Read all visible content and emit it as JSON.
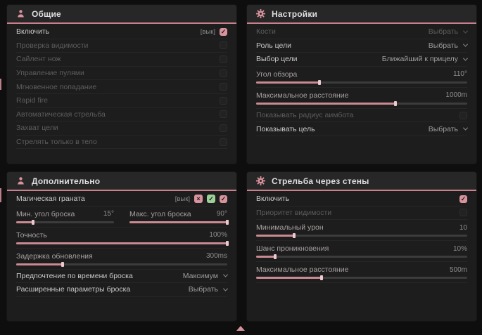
{
  "accent": "#d9939d",
  "colors": {
    "panel_bg": "#1d1d1d",
    "header_bg": "#272727",
    "accent": "#d9939d",
    "slider_fill": "#ca8a93",
    "page_bg": "#0e0e0e"
  },
  "panels": [
    {
      "id": "general",
      "title": "Общие",
      "icon": "person-icon",
      "rows": [
        {
          "type": "checkbox",
          "label": "Включить",
          "tag": "[вык]",
          "checked": true,
          "enabled": true
        },
        {
          "type": "checkbox",
          "label": "Проверка видимости",
          "checked": false,
          "enabled": false
        },
        {
          "type": "checkbox",
          "label": "Сайлент нож",
          "checked": false,
          "enabled": false
        },
        {
          "type": "checkbox",
          "label": "Управление пулями",
          "checked": false,
          "enabled": false
        },
        {
          "type": "checkbox",
          "label": "Мгновенное попадание",
          "checked": false,
          "enabled": false
        },
        {
          "type": "checkbox",
          "label": "Rapid fire",
          "checked": false,
          "enabled": false
        },
        {
          "type": "checkbox",
          "label": "Автоматическая стрельба",
          "checked": false,
          "enabled": false
        },
        {
          "type": "checkbox",
          "label": "Захват цели",
          "checked": false,
          "enabled": false
        },
        {
          "type": "checkbox",
          "label": "Стрелять только в тело",
          "checked": false,
          "enabled": false
        }
      ]
    },
    {
      "id": "settings",
      "title": "Настройки",
      "icon": "gear-icon",
      "rows": [
        {
          "type": "dropdown",
          "label": "Кости",
          "value": "Выбрать",
          "enabled": false
        },
        {
          "type": "dropdown",
          "label": "Роль цели",
          "value": "Выбрать",
          "enabled": true
        },
        {
          "type": "dropdown",
          "label": "Выбор цели",
          "value": "Ближайший к прицелу",
          "enabled": true
        },
        {
          "type": "slider",
          "label": "Угол обзора",
          "value": "110°",
          "percent": 30
        },
        {
          "type": "slider",
          "label": "Максимальное расстояние",
          "value": "1000m",
          "percent": 66
        },
        {
          "type": "checkbox",
          "label": "Показывать радиус аимбота",
          "checked": false,
          "enabled": false
        },
        {
          "type": "dropdown",
          "label": "Показывать цель",
          "value": "Выбрать",
          "enabled": true
        }
      ]
    },
    {
      "id": "additional",
      "title": "Дополнительно",
      "icon": "person-icon",
      "rows": [
        {
          "type": "checkbox",
          "label": "Магическая граната",
          "tag": "[вык]",
          "checked": true,
          "enabled": true,
          "icons": [
            "deny-icon",
            "allow-icon"
          ]
        },
        {
          "type": "slider-pair",
          "left": {
            "label": "Мин. угол броска",
            "value": "15°",
            "percent": 17
          },
          "right": {
            "label": "Макс. угол броска",
            "value": "90°",
            "percent": 100
          }
        },
        {
          "type": "slider",
          "label": "Точность",
          "value": "100%",
          "percent": 100
        },
        {
          "type": "slider",
          "label": "Задержка обновления",
          "value": "300ms",
          "percent": 22
        },
        {
          "type": "dropdown",
          "label": "Предпочтение по времени броска",
          "value": "Максимум",
          "enabled": true
        },
        {
          "type": "dropdown",
          "label": "Расширенные параметры броска",
          "value": "Выбрать",
          "enabled": true
        }
      ]
    },
    {
      "id": "wallshoot",
      "title": "Стрельба через стены",
      "icon": "gear-icon",
      "rows": [
        {
          "type": "checkbox",
          "label": "Включить",
          "checked": true,
          "enabled": true
        },
        {
          "type": "checkbox",
          "label": "Приоритет видимости",
          "checked": false,
          "enabled": false
        },
        {
          "type": "slider",
          "label": "Минимальный урон",
          "value": "10",
          "percent": 18
        },
        {
          "type": "slider",
          "label": "Шанс проникновения",
          "value": "10%",
          "percent": 9
        },
        {
          "type": "slider",
          "label": "Максимальное расстояние",
          "value": "500m",
          "percent": 31
        }
      ]
    }
  ],
  "glyphs": {
    "check": "✓",
    "deny": "×",
    "allow": "✓"
  }
}
